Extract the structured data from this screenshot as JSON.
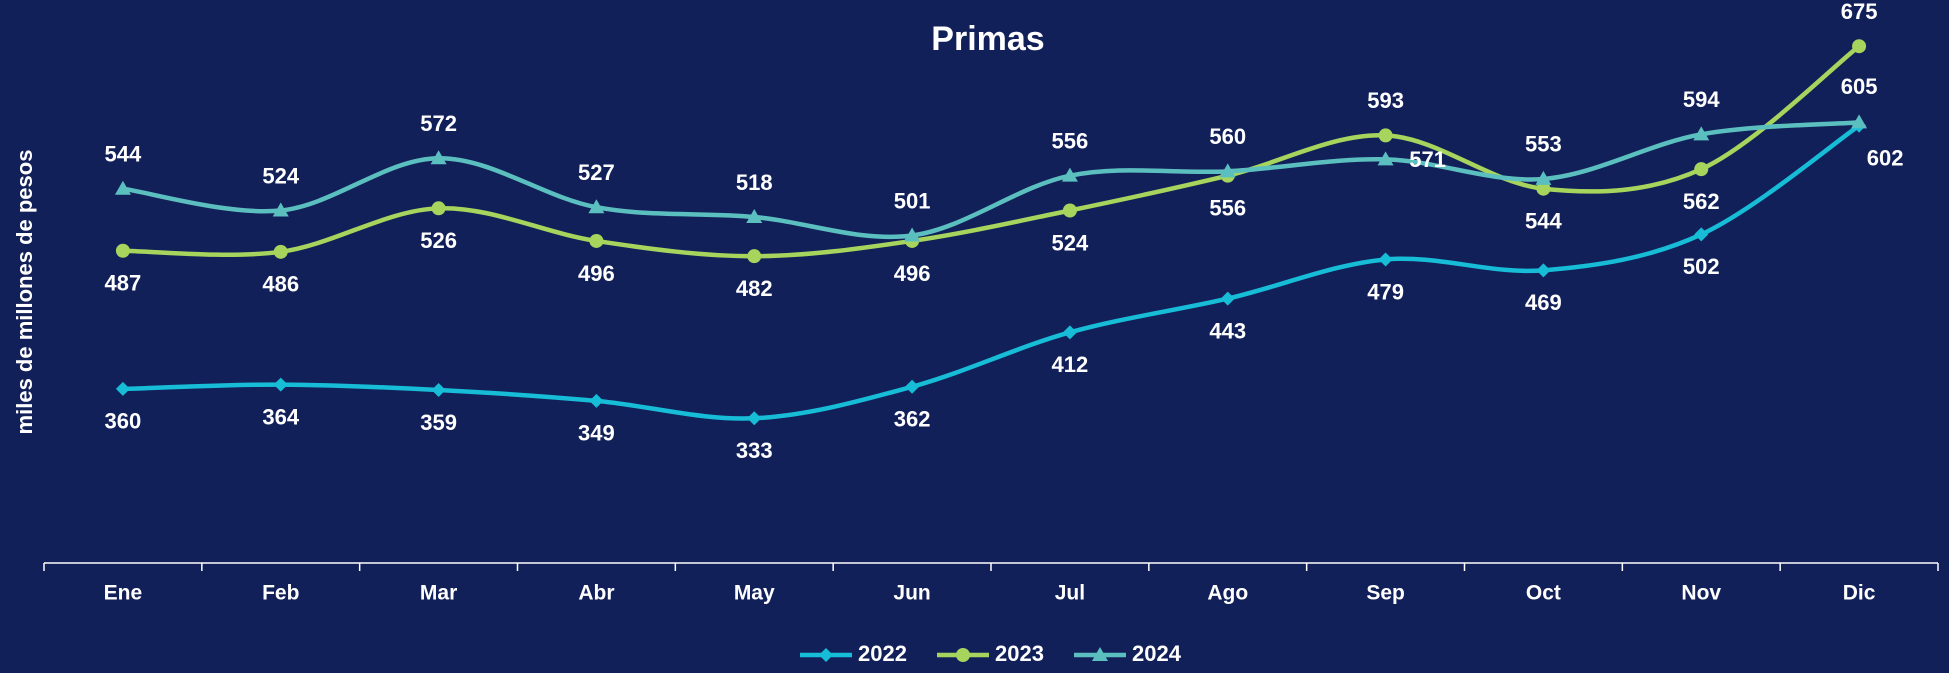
{
  "chart_data": {
    "type": "line",
    "title": "Primas",
    "y_label": "miles de millones de pesos",
    "categories": [
      "Ene",
      "Feb",
      "Mar",
      "Abr",
      "May",
      "Jun",
      "Jul",
      "Ago",
      "Sep",
      "Oct",
      "Nov",
      "Dic"
    ],
    "series": [
      {
        "name": "2022",
        "color": "#17bcd6",
        "marker": "diamond",
        "values": [
          360,
          364,
          359,
          349,
          333,
          362,
          412,
          443,
          479,
          469,
          502,
          602
        ]
      },
      {
        "name": "2023",
        "color": "#a6d45c",
        "marker": "circle",
        "values": [
          487,
          486,
          526,
          496,
          482,
          496,
          524,
          556,
          593,
          544,
          562,
          675
        ]
      },
      {
        "name": "2024",
        "color": "#5cbfbf",
        "marker": "triangle",
        "values": [
          544,
          524,
          572,
          527,
          518,
          501,
          556,
          560,
          571,
          553,
          594,
          605
        ]
      }
    ],
    "ylim": [
      200,
      700
    ],
    "smooth": true,
    "legend": "bottom"
  }
}
